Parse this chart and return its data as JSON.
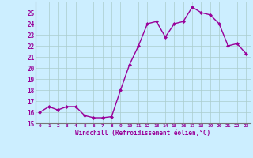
{
  "x": [
    0,
    1,
    2,
    3,
    4,
    5,
    6,
    7,
    8,
    9,
    10,
    11,
    12,
    13,
    14,
    15,
    16,
    17,
    18,
    19,
    20,
    21,
    22,
    23
  ],
  "y": [
    16.0,
    16.5,
    16.2,
    16.5,
    16.5,
    15.7,
    15.5,
    15.5,
    15.6,
    18.0,
    20.3,
    22.0,
    24.0,
    24.2,
    22.8,
    24.0,
    24.2,
    25.5,
    25.0,
    24.8,
    24.0,
    22.0,
    22.2,
    21.3
  ],
  "line_color": "#990099",
  "marker": "D",
  "marker_size": 2,
  "bg_color": "#cceeff",
  "grid_color": "#aacccc",
  "ylim": [
    15,
    26
  ],
  "xlim": [
    -0.5,
    23.5
  ],
  "yticks": [
    15,
    16,
    17,
    18,
    19,
    20,
    21,
    22,
    23,
    24,
    25
  ],
  "xticks": [
    0,
    1,
    2,
    3,
    4,
    5,
    6,
    7,
    8,
    9,
    10,
    11,
    12,
    13,
    14,
    15,
    16,
    17,
    18,
    19,
    20,
    21,
    22,
    23
  ],
  "xlabel": "Windchill (Refroidissement éolien,°C)",
  "xlabel_color": "#990099",
  "tick_color": "#990099",
  "axis_color": "#777777",
  "line_width": 1.0
}
